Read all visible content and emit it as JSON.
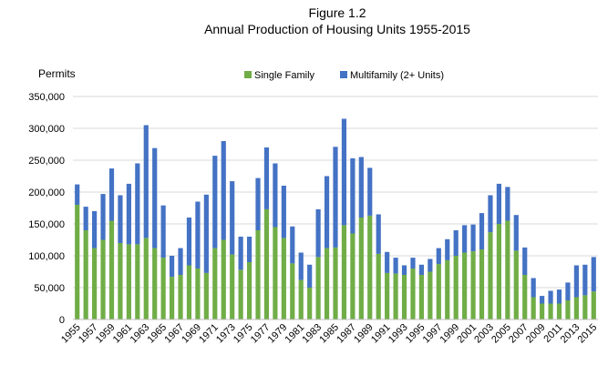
{
  "chart_data": {
    "type": "bar",
    "stacked": true,
    "title": "Figure 1.2",
    "subtitle": "Annual Production of Housing Units 1955-2015",
    "ylabel": "Permits",
    "xlabel": "",
    "ylim": [
      0,
      350000
    ],
    "yticks": [
      0,
      50000,
      100000,
      150000,
      200000,
      250000,
      300000,
      350000
    ],
    "ytick_labels": [
      "0",
      "50,000",
      "100,000",
      "150,000",
      "200,000",
      "250,000",
      "300,000",
      "350,000"
    ],
    "grid": true,
    "legend_position": "top-center",
    "categories": [
      "1955",
      "1956",
      "1957",
      "1958",
      "1959",
      "1960",
      "1961",
      "1962",
      "1963",
      "1964",
      "1965",
      "1966",
      "1967",
      "1968",
      "1969",
      "1970",
      "1971",
      "1972",
      "1973",
      "1974",
      "1975",
      "1976",
      "1977",
      "1978",
      "1979",
      "1980",
      "1981",
      "1982",
      "1983",
      "1984",
      "1985",
      "1986",
      "1987",
      "1988",
      "1989",
      "1990",
      "1991",
      "1992",
      "1993",
      "1994",
      "1995",
      "1996",
      "1997",
      "1998",
      "1999",
      "2000",
      "2001",
      "2002",
      "2003",
      "2004",
      "2005",
      "2006",
      "2007",
      "2008",
      "2009",
      "2010",
      "2011",
      "2012",
      "2013",
      "2014",
      "2015"
    ],
    "xtick_labels": [
      "1955",
      "1957",
      "1959",
      "1961",
      "1963",
      "1965",
      "1967",
      "1969",
      "1971",
      "1973",
      "1975",
      "1977",
      "1979",
      "1981",
      "1983",
      "1985",
      "1987",
      "1989",
      "1991",
      "1993",
      "1995",
      "1997",
      "1999",
      "2001",
      "2003",
      "2005",
      "2007",
      "2009",
      "2011",
      "2013",
      "2015"
    ],
    "series": [
      {
        "name": "Single Family",
        "color": "#70ad47",
        "values": [
          180000,
          140000,
          112000,
          125000,
          155000,
          120000,
          118000,
          118000,
          128000,
          112000,
          97000,
          67000,
          70000,
          85000,
          80000,
          73000,
          112000,
          125000,
          102000,
          78000,
          90000,
          140000,
          173000,
          145000,
          128000,
          88000,
          62000,
          50000,
          98000,
          112000,
          113000,
          148000,
          135000,
          160000,
          163000,
          103000,
          73000,
          72000,
          70000,
          80000,
          70000,
          75000,
          87000,
          93000,
          100000,
          105000,
          107000,
          110000,
          137000,
          150000,
          155000,
          108000,
          70000,
          35000,
          25000,
          25000,
          25000,
          30000,
          35000,
          38000,
          44000
        ]
      },
      {
        "name": "Multifamily (2+ Units)",
        "color": "#4472c4",
        "values": [
          32000,
          37000,
          58000,
          72000,
          82000,
          75000,
          95000,
          127000,
          177000,
          157000,
          82000,
          33000,
          42000,
          75000,
          105000,
          123000,
          145000,
          155000,
          115000,
          52000,
          40000,
          82000,
          97000,
          100000,
          82000,
          58000,
          43000,
          36000,
          75000,
          113000,
          158000,
          167000,
          118000,
          95000,
          75000,
          62000,
          33000,
          25000,
          15000,
          17000,
          16000,
          20000,
          25000,
          33000,
          40000,
          43000,
          42000,
          57000,
          58000,
          63000,
          53000,
          56000,
          43000,
          30000,
          12000,
          20000,
          22000,
          28000,
          50000,
          48000,
          54000
        ]
      }
    ]
  }
}
